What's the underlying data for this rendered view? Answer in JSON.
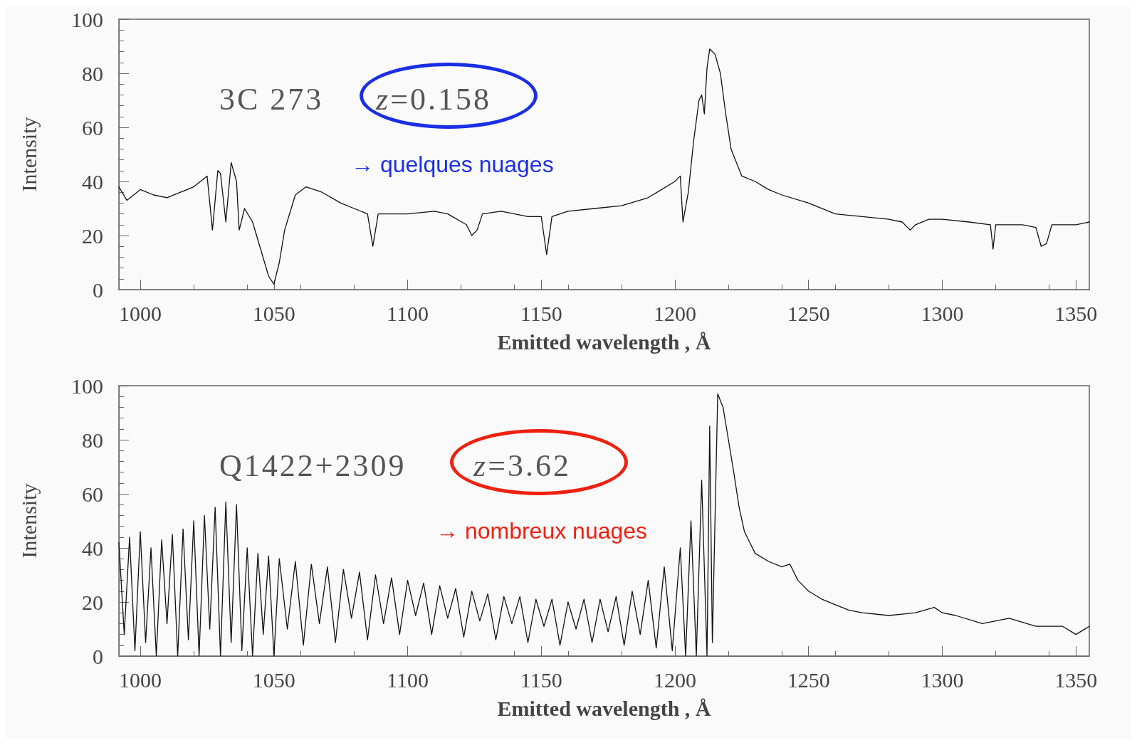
{
  "chart_data": [
    {
      "type": "line",
      "xlabel": "Emitted wavelength , Å",
      "ylabel": "Intensity",
      "xlim": [
        992,
        1355
      ],
      "ylim": [
        0,
        100
      ],
      "xticks": [
        1000,
        1050,
        1100,
        1150,
        1200,
        1250,
        1300,
        1350
      ],
      "yticks": [
        0,
        20,
        40,
        60,
        80,
        100
      ],
      "grid": false,
      "marker": "none",
      "line_style": "solid",
      "annotations": [
        "3C 273",
        "z=0.158",
        "→ quelques nuages"
      ],
      "series": [
        {
          "color": "#111111",
          "x": [
            992,
            995,
            1000,
            1005,
            1010,
            1015,
            1020,
            1025,
            1027,
            1029,
            1030,
            1032,
            1034,
            1036,
            1037,
            1039,
            1042,
            1045,
            1048,
            1050,
            1052,
            1054,
            1058,
            1062,
            1068,
            1075,
            1080,
            1085,
            1087,
            1089,
            1095,
            1100,
            1110,
            1115,
            1122,
            1124,
            1126,
            1128,
            1135,
            1145,
            1150,
            1152,
            1154,
            1160,
            1170,
            1180,
            1190,
            1195,
            1200,
            1202,
            1203,
            1205,
            1207,
            1209,
            1210,
            1211,
            1212,
            1213,
            1215,
            1217,
            1219,
            1221,
            1223,
            1225,
            1230,
            1235,
            1240,
            1250,
            1260,
            1270,
            1280,
            1285,
            1288,
            1290,
            1295,
            1300,
            1310,
            1318,
            1319,
            1320,
            1330,
            1335,
            1337,
            1339,
            1341,
            1350,
            1355
          ],
          "values": [
            38,
            33,
            37,
            35,
            34,
            36,
            38,
            42,
            22,
            44,
            43,
            25,
            47,
            40,
            22,
            30,
            25,
            15,
            5,
            2,
            10,
            22,
            35,
            38,
            36,
            32,
            30,
            28,
            16,
            28,
            28,
            28,
            29,
            28,
            24,
            20,
            22,
            28,
            29,
            27,
            27,
            13,
            27,
            29,
            30,
            31,
            34,
            37,
            40,
            42,
            25,
            36,
            55,
            70,
            72,
            65,
            82,
            89,
            87,
            80,
            65,
            52,
            47,
            42,
            40,
            37,
            35,
            32,
            28,
            27,
            26,
            25,
            22,
            24,
            26,
            26,
            25,
            24,
            15,
            24,
            24,
            23,
            16,
            17,
            24,
            24,
            25
          ]
        }
      ]
    },
    {
      "type": "line",
      "xlabel": "Emitted wavelength , Å",
      "ylabel": "Intensity",
      "xlim": [
        992,
        1355
      ],
      "ylim": [
        0,
        100
      ],
      "xticks": [
        1000,
        1050,
        1100,
        1150,
        1200,
        1250,
        1300,
        1350
      ],
      "yticks": [
        0,
        20,
        40,
        60,
        80,
        100
      ],
      "grid": false,
      "marker": "none",
      "line_style": "solid",
      "annotations": [
        "Q1422+2309",
        "z=3.62",
        "→ nombreux nuages"
      ],
      "series": [
        {
          "color": "#111111",
          "x": [
            992,
            994,
            996,
            998,
            1000,
            1002,
            1004,
            1006,
            1008,
            1010,
            1012,
            1014,
            1016,
            1018,
            1020,
            1022,
            1024,
            1026,
            1028,
            1030,
            1032,
            1034,
            1036,
            1038,
            1040,
            1042,
            1044,
            1046,
            1048,
            1050,
            1052,
            1055,
            1058,
            1061,
            1064,
            1067,
            1070,
            1073,
            1076,
            1079,
            1082,
            1085,
            1088,
            1091,
            1094,
            1097,
            1100,
            1103,
            1106,
            1109,
            1112,
            1115,
            1118,
            1121,
            1124,
            1127,
            1130,
            1133,
            1136,
            1139,
            1142,
            1145,
            1148,
            1151,
            1154,
            1157,
            1160,
            1163,
            1166,
            1169,
            1172,
            1175,
            1178,
            1181,
            1184,
            1187,
            1190,
            1193,
            1196,
            1199,
            1202,
            1204,
            1206,
            1208,
            1210,
            1212,
            1213,
            1214,
            1216,
            1218,
            1220,
            1222,
            1224,
            1226,
            1230,
            1235,
            1240,
            1243,
            1246,
            1250,
            1255,
            1260,
            1265,
            1270,
            1280,
            1290,
            1297,
            1300,
            1305,
            1315,
            1325,
            1335,
            1345,
            1350,
            1355
          ],
          "values": [
            42,
            8,
            44,
            2,
            46,
            5,
            40,
            0,
            43,
            12,
            45,
            0,
            47,
            6,
            50,
            0,
            52,
            10,
            55,
            0,
            57,
            5,
            56,
            2,
            40,
            0,
            38,
            8,
            37,
            0,
            36,
            10,
            35,
            4,
            34,
            12,
            33,
            5,
            32,
            14,
            31,
            6,
            30,
            12,
            29,
            8,
            28,
            15,
            27,
            8,
            26,
            14,
            25,
            7,
            24,
            13,
            23,
            6,
            22,
            12,
            22,
            5,
            21,
            11,
            21,
            4,
            20,
            10,
            21,
            5,
            21,
            9,
            22,
            4,
            24,
            8,
            28,
            3,
            33,
            2,
            40,
            0,
            50,
            0,
            65,
            0,
            85,
            5,
            97,
            92,
            80,
            68,
            55,
            46,
            38,
            35,
            33,
            34,
            28,
            24,
            21,
            19,
            17,
            16,
            15,
            16,
            18,
            16,
            15,
            12,
            14,
            11,
            11,
            8,
            11
          ]
        }
      ]
    }
  ]
}
